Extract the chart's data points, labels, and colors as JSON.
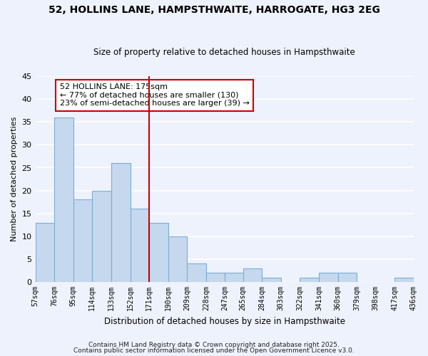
{
  "title": "52, HOLLINS LANE, HAMPSTHWAITE, HARROGATE, HG3 2EG",
  "subtitle": "Size of property relative to detached houses in Hampsthwaite",
  "xlabel": "Distribution of detached houses by size in Hampsthwaite",
  "ylabel": "Number of detached properties",
  "bar_color": "#c5d8ee",
  "bar_edge_color": "#7aaed6",
  "background_color": "#eef2fc",
  "grid_color": "#ffffff",
  "vline_x": 171,
  "vline_color": "#cc0000",
  "bin_edges": [
    57,
    76,
    95,
    114,
    133,
    152,
    171,
    190,
    209,
    228,
    247,
    265,
    284,
    303,
    322,
    341,
    360,
    379,
    398,
    417,
    436
  ],
  "bin_labels": [
    "57sqm",
    "76sqm",
    "95sqm",
    "114sqm",
    "133sqm",
    "152sqm",
    "171sqm",
    "190sqm",
    "209sqm",
    "228sqm",
    "247sqm",
    "265sqm",
    "284sqm",
    "303sqm",
    "322sqm",
    "341sqm",
    "360sqm",
    "379sqm",
    "398sqm",
    "417sqm",
    "436sqm"
  ],
  "bar_heights": [
    13,
    36,
    18,
    20,
    26,
    16,
    13,
    10,
    4,
    2,
    2,
    3,
    1,
    0,
    1,
    2,
    2,
    0,
    0,
    1
  ],
  "ylim": [
    0,
    45
  ],
  "yticks": [
    0,
    5,
    10,
    15,
    20,
    25,
    30,
    35,
    40,
    45
  ],
  "annotation_title": "52 HOLLINS LANE: 175sqm",
  "annotation_line1": "← 77% of detached houses are smaller (130)",
  "annotation_line2": "23% of semi-detached houses are larger (39) →",
  "annotation_box_color": "#ffffff",
  "annotation_box_edge": "#cc0000",
  "footer1": "Contains HM Land Registry data © Crown copyright and database right 2025.",
  "footer2": "Contains public sector information licensed under the Open Government Licence v3.0."
}
